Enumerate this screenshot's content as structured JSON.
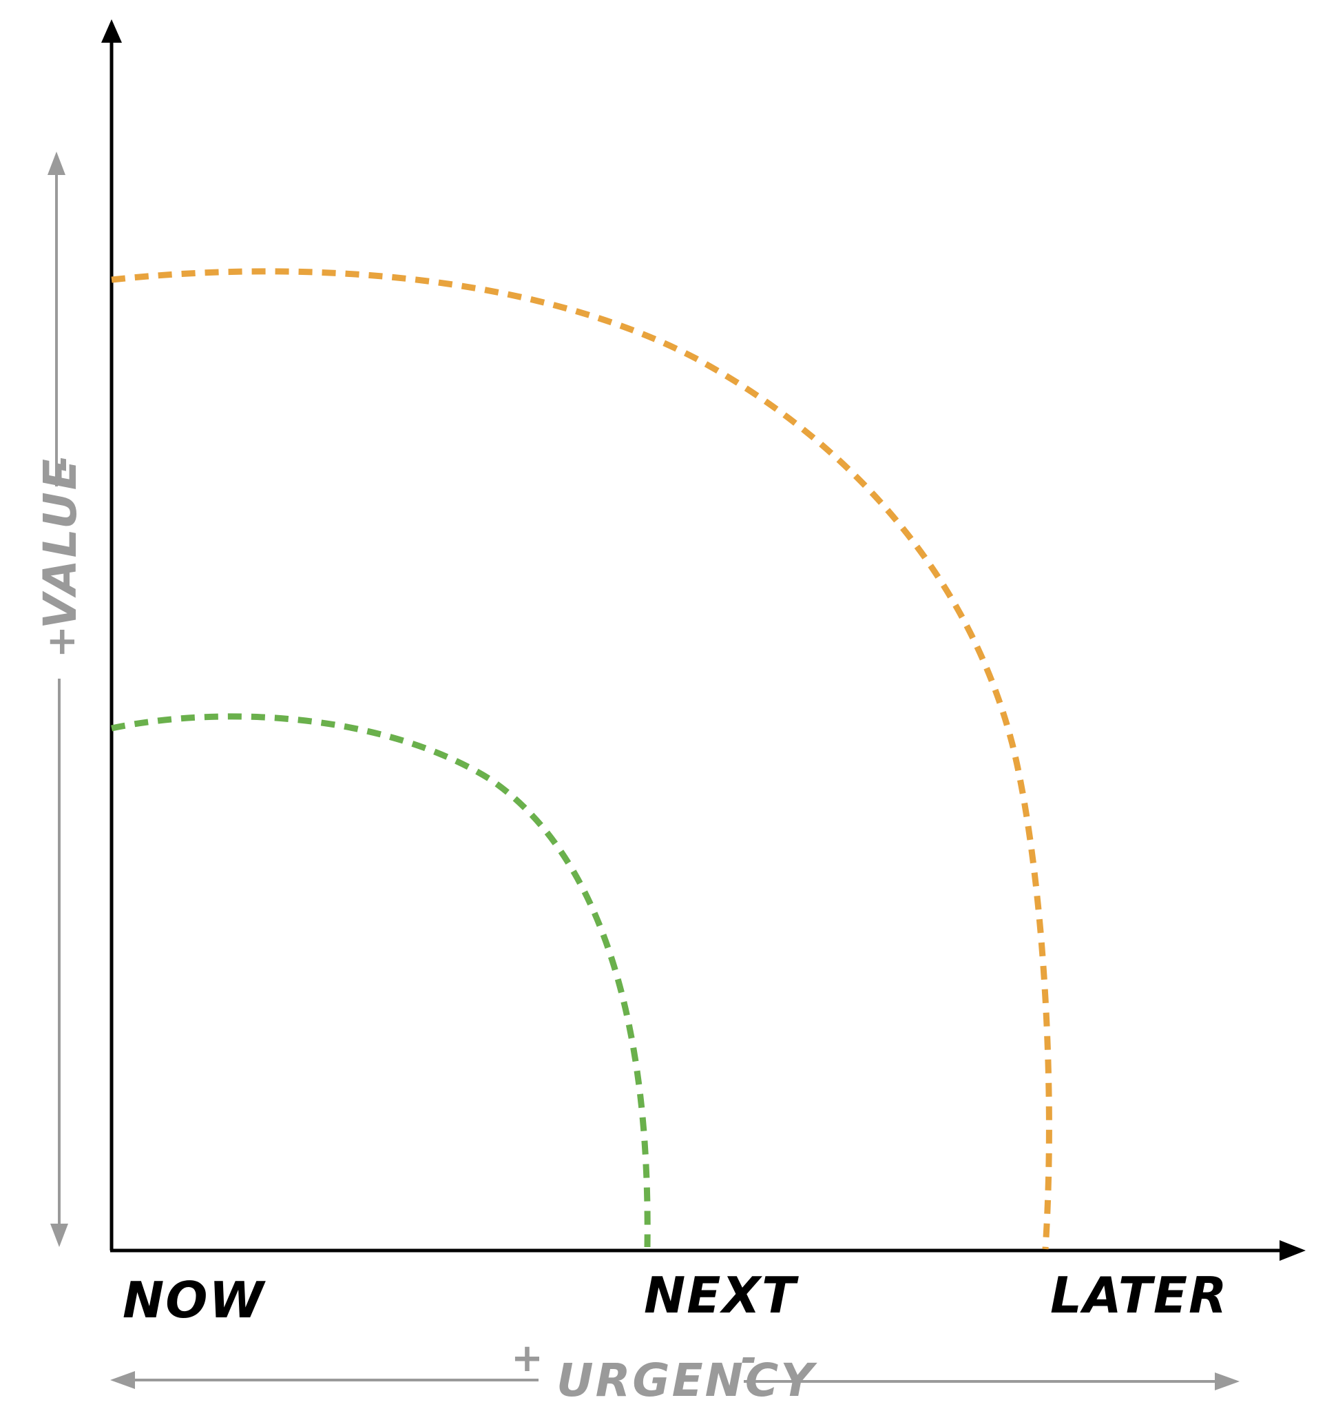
{
  "diagram": {
    "x_axis": {
      "categories": [
        "NOW",
        "NEXT",
        "LATER"
      ],
      "helper_label": "URGENCY",
      "plus_sign": "+",
      "minus_sign": "-"
    },
    "y_axis": {
      "helper_label": "VALUE",
      "plus_sign": "+",
      "minus_sign": "-"
    },
    "horizons": [
      {
        "color": "#6ab04c",
        "style": "dashed"
      },
      {
        "color": "#e8a33d",
        "style": "dashed"
      }
    ],
    "colors": {
      "axis": "#000000",
      "helper": "#9a9a9a"
    }
  }
}
